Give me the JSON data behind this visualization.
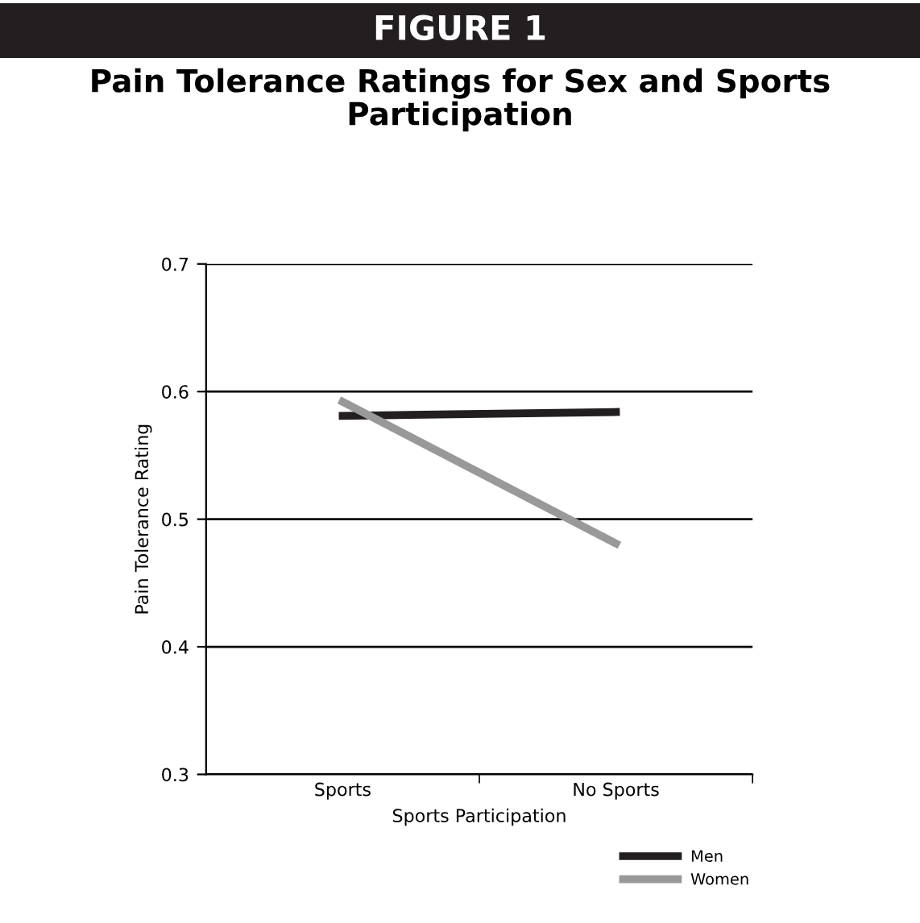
{
  "chart_data": {
    "type": "line",
    "title": "FIGURE 1",
    "subtitle": "Pain Tolerance Ratings for Sex and Sports Participation",
    "xlabel": "Sports Participation",
    "ylabel": "Pain Tolerance Rating",
    "categories": [
      "Sports",
      "No Sports"
    ],
    "series": [
      {
        "name": "Men",
        "color": "#231f20",
        "values": [
          0.581,
          0.584
        ]
      },
      {
        "name": "Women",
        "color": "#999999",
        "values": [
          0.592,
          0.481
        ]
      }
    ],
    "ylim": [
      0.3,
      0.7
    ],
    "yticks": [
      0.3,
      0.4,
      0.5,
      0.6,
      0.7
    ],
    "grid": "y",
    "legend": "bottom right",
    "marker": "none",
    "line_style": "solid"
  }
}
